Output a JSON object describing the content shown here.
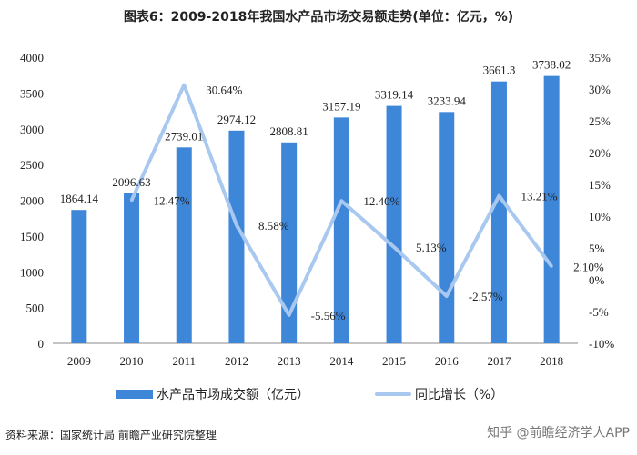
{
  "title": "图表6：2009-2018年我国水产品市场交易额走势(单位：亿元，%)",
  "colors": {
    "bar": "#3d86d8",
    "line": "#a8c8f0",
    "axis": "#888888"
  },
  "chart_data": {
    "type": "bar",
    "categories": [
      "2009",
      "2010",
      "2011",
      "2012",
      "2013",
      "2014",
      "2015",
      "2016",
      "2017",
      "2018"
    ],
    "series": [
      {
        "name": "水产品市场成交额（亿元）",
        "type": "bar",
        "axis": "left",
        "values": [
          1864.14,
          2096.63,
          2739.01,
          2974.12,
          2808.81,
          3157.19,
          3319.14,
          3233.94,
          3661.3,
          3738.02
        ],
        "labels": [
          "1864.14",
          "2096.63",
          "2739.01",
          "2974.12",
          "2808.81",
          "3157.19",
          "3319.14",
          "3233.94",
          "3661.3",
          "3738.02"
        ]
      },
      {
        "name": "同比增长（%）",
        "type": "line",
        "axis": "right",
        "values": [
          12.47,
          30.64,
          8.58,
          -5.56,
          12.4,
          5.13,
          -2.57,
          13.21,
          2.1
        ],
        "x": [
          "2010",
          "2011",
          "2012",
          "2013",
          "2014",
          "2015",
          "2016",
          "2017",
          "2018"
        ],
        "labels": [
          "12.47%",
          "30.64%",
          "8.58%",
          "-5.56%",
          "12.40%",
          "5.13%",
          "-2.57%",
          "13.21%",
          "2.10%"
        ]
      }
    ],
    "y_left": {
      "ticks": [
        0,
        500,
        1000,
        1500,
        2000,
        2500,
        3000,
        3500,
        4000
      ],
      "range": [
        0,
        4000
      ]
    },
    "y_right": {
      "ticks": [
        "35%",
        "30%",
        "25%",
        "20%",
        "15%",
        "10%",
        "5%",
        "0%",
        "-5%",
        "-10%"
      ],
      "range": [
        -10,
        35
      ]
    },
    "legend_position": "bottom",
    "grid": false
  },
  "source": "资料来源：国家统计局 前瞻产业研究院整理",
  "watermark": "知乎 @前瞻经济学人APP"
}
